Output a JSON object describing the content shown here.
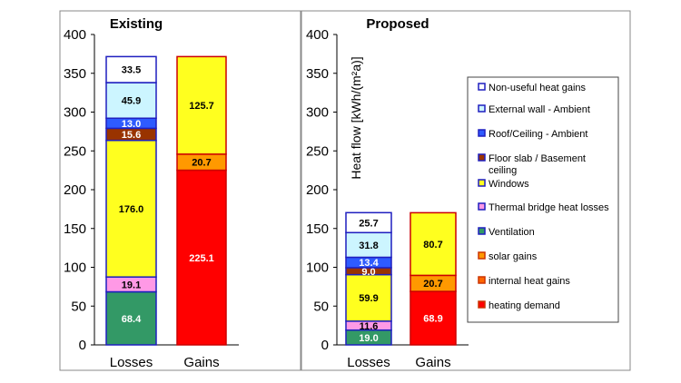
{
  "chart_data": [
    {
      "type": "bar",
      "stacked": true,
      "title": "Existing",
      "categories": [
        "Losses",
        "Gains"
      ],
      "ylim": [
        0,
        400
      ],
      "yticks": [
        0,
        50,
        100,
        150,
        200,
        250,
        300,
        350,
        400
      ],
      "grid": false,
      "stacks": [
        {
          "category": "Losses",
          "segments": [
            {
              "series": "Ventilation",
              "value": 68.4,
              "label": "68.4"
            },
            {
              "series": "Thermal bridge heat losses",
              "value": 19.1,
              "label": "19.1"
            },
            {
              "series": "Windows",
              "value": 176.0,
              "label": "176.0"
            },
            {
              "series": "Floor slab / Basement ceiling",
              "value": 15.6,
              "label": "15.6"
            },
            {
              "series": "Roof/Ceiling - Ambient",
              "value": 13.0,
              "label": "13.0"
            },
            {
              "series": "External wall - Ambient",
              "value": 45.9,
              "label": "45.9"
            },
            {
              "series": "Non-useful heat gains",
              "value": 33.5,
              "label": "33.5"
            }
          ]
        },
        {
          "category": "Gains",
          "segments": [
            {
              "series": "heating demand",
              "value": 225.1,
              "label": "225.1"
            },
            {
              "series": "solar gains",
              "value": 20.7,
              "label": "20.7"
            },
            {
              "series": "Windows",
              "value": 125.7,
              "label": "125.7"
            }
          ]
        }
      ]
    },
    {
      "type": "bar",
      "stacked": true,
      "title": "Proposed",
      "ylabel": "Heat flow [kWh/(m²a)]",
      "categories": [
        "Losses",
        "Gains"
      ],
      "ylim": [
        0,
        400
      ],
      "yticks": [
        0,
        50,
        100,
        150,
        200,
        250,
        300,
        350,
        400
      ],
      "grid": false,
      "legend_position": "right",
      "stacks": [
        {
          "category": "Losses",
          "segments": [
            {
              "series": "Ventilation",
              "value": 19.0,
              "label": "19.0"
            },
            {
              "series": "Thermal bridge heat losses",
              "value": 11.6,
              "label": "11.6"
            },
            {
              "series": "Windows",
              "value": 59.9,
              "label": "59.9"
            },
            {
              "series": "Floor slab / Basement ceiling",
              "value": 9.0,
              "label": "9.0"
            },
            {
              "series": "Roof/Ceiling - Ambient",
              "value": 13.4,
              "label": "13.4"
            },
            {
              "series": "External wall - Ambient",
              "value": 31.8,
              "label": "31.8"
            },
            {
              "series": "Non-useful heat gains",
              "value": 25.7,
              "label": "25.7"
            }
          ]
        },
        {
          "category": "Gains",
          "segments": [
            {
              "series": "heating demand",
              "value": 68.9,
              "label": "68.9"
            },
            {
              "series": "solar gains",
              "value": 20.7,
              "label": "20.7"
            },
            {
              "series": "Windows",
              "value": 80.7,
              "label": "80.7"
            }
          ]
        }
      ]
    }
  ],
  "legend": [
    {
      "name": "Non-useful heat gains",
      "fill": "#ffffff",
      "stroke": "#1f1fbf",
      "text": "#000000"
    },
    {
      "name": "External wall - Ambient",
      "fill": "#ccf5ff",
      "stroke": "#1f1fbf",
      "text": "#000000"
    },
    {
      "name": "Roof/Ceiling - Ambient",
      "fill": "#2e5bff",
      "stroke": "#1f1fbf",
      "text": "#ffffff"
    },
    {
      "name": "Floor slab / Basement ceiling",
      "fill": "#993300",
      "stroke": "#1f1fbf",
      "text": "#ffffff"
    },
    {
      "name": "Windows",
      "fill": "#ffff1f",
      "stroke": "#1f1fbf",
      "text": "#000000"
    },
    {
      "name": "Thermal bridge heat losses",
      "fill": "#ff99e6",
      "stroke": "#1f1fbf",
      "text": "#000000"
    },
    {
      "name": "Ventilation",
      "fill": "#339966",
      "stroke": "#1f1fbf",
      "text": "#ffffff"
    },
    {
      "name": "solar gains",
      "fill": "#ff9900",
      "stroke": "#cc3300",
      "text": "#000000"
    },
    {
      "name": "internal heat gains",
      "fill": "#ff6600",
      "stroke": "#cc3300",
      "text": "#000000"
    },
    {
      "name": "heating demand",
      "fill": "#ff0000",
      "stroke": "#cc3300",
      "text": "#ffffff"
    }
  ],
  "gains_windows_color": {
    "fill": "#ffff1f",
    "stroke": "#cc0000"
  }
}
